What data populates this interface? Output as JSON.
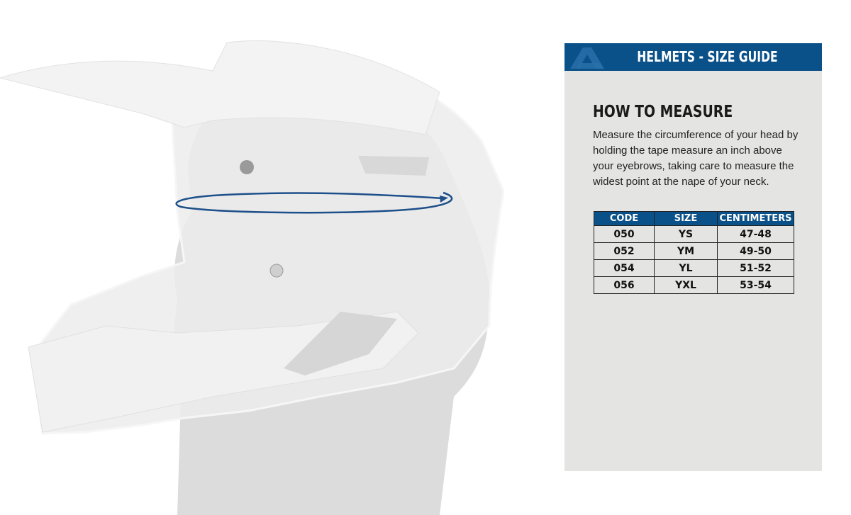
{
  "banner": {
    "title": "HELMETS - SIZE GUIDE",
    "logo": "acerbis-logo"
  },
  "measure": {
    "heading": "HOW TO MEASURE",
    "description": "Measure the circumference of your head by holding the tape measure an inch above your eyebrows, taking care to measure the widest point at the nape of your neck."
  },
  "size_table": {
    "headers": [
      "CODE",
      "SIZE",
      "CENTIMETERS"
    ],
    "rows": [
      [
        "050",
        "YS",
        "47-48"
      ],
      [
        "052",
        "YM",
        "49-50"
      ],
      [
        "054",
        "YL",
        "51-52"
      ],
      [
        "056",
        "YXL",
        "53-54"
      ]
    ]
  },
  "colors": {
    "accent": "#0b5189",
    "panel": "#e4e4e2",
    "tape": "#1d4f8a"
  }
}
